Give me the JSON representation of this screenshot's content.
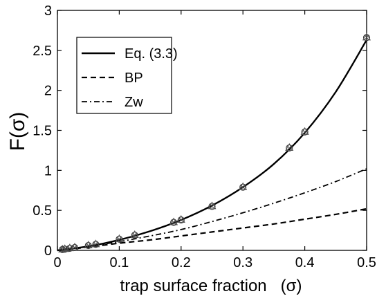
{
  "chart_data": {
    "type": "line",
    "title": "",
    "xlabel": "trap surface fraction   (σ)",
    "ylabel": "F(σ)",
    "xlim": [
      0,
      0.5
    ],
    "ylim": [
      0,
      3
    ],
    "xticks": [
      0,
      0.1,
      0.2,
      0.3,
      0.4,
      0.5
    ],
    "xtick_labels": [
      "0",
      "0.1",
      "0.2",
      "0.3",
      "0.4",
      "0.5"
    ],
    "yticks": [
      0,
      0.5,
      1,
      1.5,
      2,
      2.5,
      3
    ],
    "ytick_labels": [
      "0",
      "0.5",
      "1",
      "1.5",
      "2",
      "2.5",
      "3"
    ],
    "grid": false,
    "legend_position": "top-left",
    "series": [
      {
        "name": "Eq. (3.3)",
        "style": "solid",
        "x": [
          0,
          0.05,
          0.1,
          0.15,
          0.2,
          0.25,
          0.3,
          0.35,
          0.4,
          0.45,
          0.5
        ],
        "y": [
          0,
          0.05,
          0.13,
          0.24,
          0.38,
          0.56,
          0.79,
          1.08,
          1.47,
          1.98,
          2.63
        ]
      },
      {
        "name": "BP",
        "style": "dashed",
        "x": [
          0,
          0.05,
          0.1,
          0.15,
          0.2,
          0.25,
          0.3,
          0.35,
          0.4,
          0.45,
          0.5
        ],
        "y": [
          0,
          0.04,
          0.09,
          0.13,
          0.18,
          0.23,
          0.28,
          0.33,
          0.39,
          0.45,
          0.52
        ]
      },
      {
        "name": "Zw",
        "style": "dashdot",
        "x": [
          0,
          0.05,
          0.1,
          0.15,
          0.2,
          0.25,
          0.3,
          0.35,
          0.4,
          0.45,
          0.5
        ],
        "y": [
          0,
          0.05,
          0.11,
          0.18,
          0.26,
          0.36,
          0.47,
          0.59,
          0.72,
          0.86,
          1.02
        ]
      }
    ],
    "markers": {
      "x": [
        0.008,
        0.012,
        0.02,
        0.028,
        0.05,
        0.062,
        0.1,
        0.125,
        0.188,
        0.2,
        0.25,
        0.3,
        0.375,
        0.4,
        0.5
      ],
      "y": [
        0.01,
        0.015,
        0.025,
        0.035,
        0.06,
        0.075,
        0.14,
        0.19,
        0.35,
        0.38,
        0.55,
        0.79,
        1.28,
        1.48,
        2.66
      ],
      "shapes": [
        "circle",
        "triangle",
        "x"
      ]
    }
  }
}
